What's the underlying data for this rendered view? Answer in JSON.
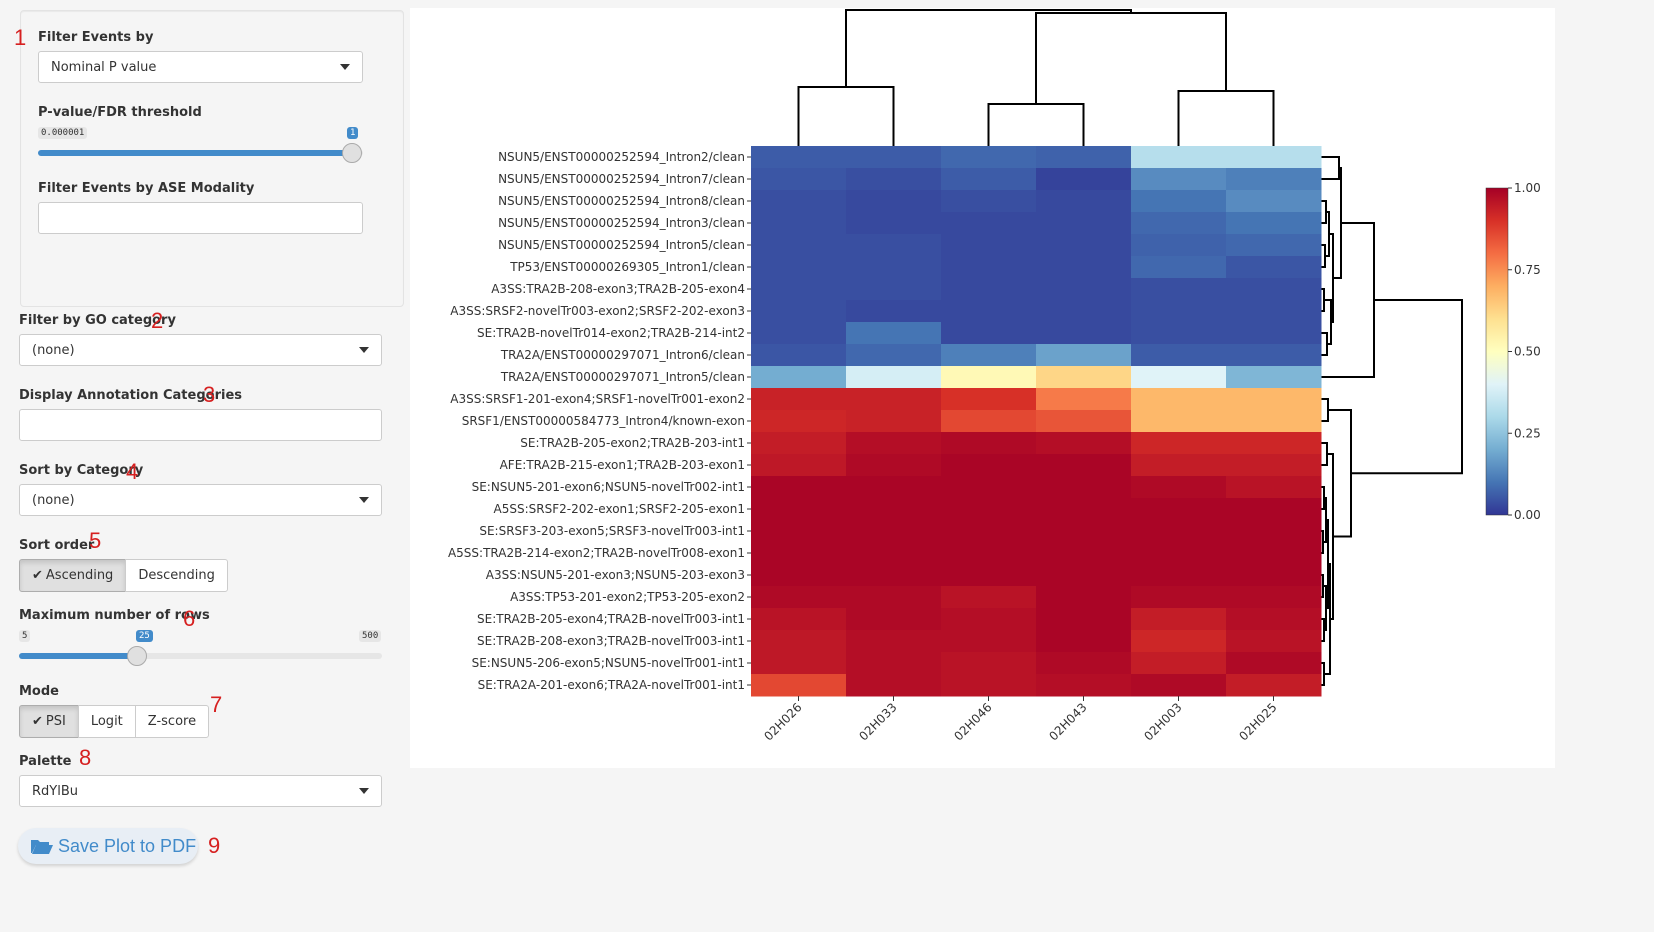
{
  "sidebar": {
    "filter_events": {
      "number": "1",
      "label": "Filter Events by",
      "value": "Nominal P value"
    },
    "pvalue": {
      "label": "P-value/FDR threshold",
      "min_tag": "0.000001",
      "value_tag": "1",
      "fraction": 1.0
    },
    "modality": {
      "label": "Filter Events by ASE Modality",
      "value": ""
    },
    "go_category": {
      "number": "2",
      "label": "Filter by GO category",
      "value": "(none)"
    },
    "annotation": {
      "number": "3",
      "label": "Display Annotation Categories",
      "value": ""
    },
    "sort_category": {
      "number": "4",
      "label": "Sort by Category",
      "value": "(none)"
    },
    "sort_order": {
      "number": "5",
      "label": "Sort order",
      "options": [
        "Ascending",
        "Descending"
      ],
      "selected": "Ascending"
    },
    "max_rows": {
      "number": "6",
      "label": "Maximum number of rows",
      "min": "5",
      "max": "500",
      "value": "25",
      "fraction": 0.0409
    },
    "mode": {
      "number": "7",
      "label": "Mode",
      "options": [
        "PSI",
        "Logit",
        "Z-score"
      ],
      "selected": "PSI"
    },
    "palette": {
      "number": "8",
      "label": "Palette",
      "value": "RdYlBu"
    },
    "save": {
      "number": "9",
      "label": "Save Plot to PDF",
      "icon": "folder-open-icon"
    }
  },
  "chart_data": {
    "type": "heatmap",
    "columns": [
      "02H026",
      "02H033",
      "02H046",
      "02H043",
      "02H003",
      "02H025"
    ],
    "rows": [
      "NSUN5/ENST00000252594_Intron2/clean",
      "NSUN5/ENST00000252594_Intron7/clean",
      "NSUN5/ENST00000252594_Intron8/clean",
      "NSUN5/ENST00000252594_Intron3/clean",
      "NSUN5/ENST00000252594_Intron5/clean",
      "TP53/ENST00000269305_Intron1/clean",
      "A3SS:TRA2B-208-exon3;TRA2B-205-exon4",
      "A3SS:SRSF2-novelTr003-exon2;SRSF2-202-exon3",
      "SE:TRA2B-novelTr014-exon2;TRA2B-214-int2",
      "TRA2A/ENST00000297071_Intron6/clean",
      "TRA2A/ENST00000297071_Intron5/clean",
      "A3SS:SRSF1-201-exon4;SRSF1-novelTr001-exon2",
      "SRSF1/ENST00000584773_Intron4/known-exon",
      "SE:TRA2B-205-exon2;TRA2B-203-int1",
      "AFE:TRA2B-215-exon1;TRA2B-203-exon1",
      "SE:NSUN5-201-exon6;NSUN5-novelTr002-int1",
      "A5SS:SRSF2-202-exon1;SRSF2-205-exon1",
      "SE:SRSF3-203-exon5;SRSF3-novelTr003-int1",
      "A5SS:TRA2B-214-exon2;TRA2B-novelTr008-exon1",
      "A3SS:NSUN5-201-exon3;NSUN5-203-exon3",
      "A3SS:TP53-201-exon2;TP53-205-exon2",
      "SE:TRA2B-205-exon4;TRA2B-novelTr003-int1",
      "SE:TRA2B-208-exon3;TRA2B-novelTr003-int1",
      "SE:NSUN5-206-exon5;NSUN5-novelTr001-int1",
      "SE:TRA2A-201-exon6;TRA2A-novelTr001-int1"
    ],
    "values": [
      [
        0.06,
        0.06,
        0.08,
        0.07,
        0.32,
        0.32
      ],
      [
        0.05,
        0.04,
        0.06,
        0.02,
        0.14,
        0.12
      ],
      [
        0.04,
        0.03,
        0.04,
        0.03,
        0.1,
        0.14
      ],
      [
        0.04,
        0.03,
        0.03,
        0.03,
        0.08,
        0.1
      ],
      [
        0.04,
        0.04,
        0.03,
        0.03,
        0.07,
        0.08
      ],
      [
        0.04,
        0.04,
        0.03,
        0.03,
        0.08,
        0.05
      ],
      [
        0.04,
        0.04,
        0.03,
        0.03,
        0.04,
        0.04
      ],
      [
        0.04,
        0.03,
        0.03,
        0.03,
        0.04,
        0.04
      ],
      [
        0.04,
        0.1,
        0.03,
        0.03,
        0.04,
        0.04
      ],
      [
        0.05,
        0.08,
        0.12,
        0.18,
        0.06,
        0.06
      ],
      [
        0.2,
        0.38,
        0.52,
        0.62,
        0.4,
        0.22
      ],
      [
        0.93,
        0.93,
        0.9,
        0.78,
        0.68,
        0.68
      ],
      [
        0.92,
        0.93,
        0.86,
        0.84,
        0.68,
        0.68
      ],
      [
        0.94,
        0.97,
        0.98,
        0.97,
        0.92,
        0.92
      ],
      [
        0.95,
        0.98,
        0.99,
        0.99,
        0.94,
        0.94
      ],
      [
        0.99,
        0.99,
        0.99,
        0.99,
        0.98,
        0.96
      ],
      [
        0.99,
        0.99,
        0.99,
        0.99,
        0.99,
        0.99
      ],
      [
        0.99,
        0.99,
        0.99,
        0.99,
        0.99,
        0.99
      ],
      [
        0.99,
        0.99,
        0.99,
        0.99,
        0.99,
        0.99
      ],
      [
        0.99,
        0.99,
        0.99,
        0.99,
        0.99,
        0.99
      ],
      [
        0.98,
        0.98,
        0.96,
        0.99,
        0.98,
        0.98
      ],
      [
        0.96,
        0.98,
        0.97,
        0.99,
        0.94,
        0.97
      ],
      [
        0.95,
        0.97,
        0.97,
        0.99,
        0.92,
        0.96
      ],
      [
        0.95,
        0.97,
        0.96,
        0.98,
        0.94,
        0.98
      ],
      [
        0.86,
        0.97,
        0.96,
        0.97,
        0.98,
        0.94
      ]
    ],
    "colorbar": {
      "min": 0.0,
      "max": 1.0,
      "ticks": [
        "0.00",
        "0.25",
        "0.50",
        "0.75",
        "1.00"
      ],
      "palette": "RdYlBu"
    },
    "colors": [
      "#313695",
      "#4575b4",
      "#74add1",
      "#abd9e9",
      "#e0f3f8",
      "#ffffbf",
      "#fee090",
      "#fdae61",
      "#f46d43",
      "#d73027",
      "#a50026"
    ]
  }
}
